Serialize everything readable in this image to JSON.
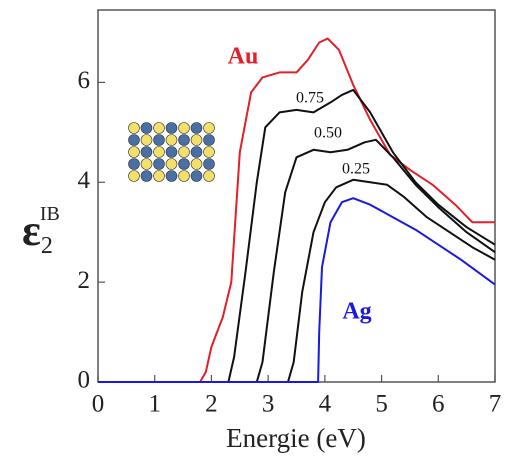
{
  "chart_data": {
    "type": "line",
    "xlabel": "Energie (eV)",
    "ylabel": {
      "symbol": "ε",
      "sub": "2",
      "sup": "IB"
    },
    "xlim": [
      0,
      7
    ],
    "ylim": [
      0,
      7.45
    ],
    "xticks": [
      0,
      1,
      2,
      3,
      4,
      5,
      6,
      7
    ],
    "yticks": [
      0,
      2,
      4,
      6
    ],
    "series": [
      {
        "name": "Au",
        "color": "#e0202a",
        "x": [
          0,
          1.8,
          1.9,
          2.0,
          2.2,
          2.35,
          2.5,
          2.7,
          2.9,
          3.2,
          3.5,
          3.7,
          3.9,
          4.05,
          4.25,
          4.5,
          4.8,
          5.15,
          5.5,
          5.9,
          6.3,
          6.6,
          7.0
        ],
        "values": [
          0,
          0,
          0.2,
          0.7,
          1.3,
          2.0,
          4.6,
          5.8,
          6.1,
          6.2,
          6.2,
          6.45,
          6.8,
          6.88,
          6.65,
          5.95,
          5.25,
          4.55,
          4.25,
          3.95,
          3.55,
          3.2,
          3.2
        ]
      },
      {
        "name": "0.75",
        "color": "#111111",
        "x": [
          0,
          2.3,
          2.4,
          2.6,
          2.8,
          2.95,
          3.2,
          3.5,
          3.8,
          4.1,
          4.3,
          4.5,
          4.8,
          5.2,
          5.6,
          6.0,
          6.5,
          7.0
        ],
        "values": [
          0,
          0,
          0.5,
          2.2,
          4.0,
          5.1,
          5.4,
          5.45,
          5.4,
          5.6,
          5.75,
          5.85,
          5.4,
          4.6,
          4.0,
          3.55,
          3.1,
          2.75
        ]
      },
      {
        "name": "0.50",
        "color": "#111111",
        "x": [
          0,
          2.8,
          2.9,
          3.1,
          3.3,
          3.5,
          3.8,
          4.1,
          4.4,
          4.7,
          4.9,
          5.2,
          5.6,
          6.0,
          6.5,
          7.0
        ],
        "values": [
          0,
          0,
          0.4,
          2.2,
          3.8,
          4.5,
          4.65,
          4.6,
          4.65,
          4.8,
          4.85,
          4.5,
          3.95,
          3.5,
          3.0,
          2.6
        ]
      },
      {
        "name": "0.25",
        "color": "#111111",
        "x": [
          0,
          3.35,
          3.45,
          3.6,
          3.8,
          4.0,
          4.2,
          4.5,
          4.8,
          5.1,
          5.4,
          5.8,
          6.2,
          6.6,
          7.0
        ],
        "values": [
          0,
          0,
          0.4,
          1.8,
          3.0,
          3.6,
          3.9,
          4.05,
          4.0,
          3.95,
          3.7,
          3.3,
          3.0,
          2.7,
          2.45
        ]
      },
      {
        "name": "Ag",
        "color": "#1a1adf",
        "x": [
          0,
          3.88,
          3.9,
          3.95,
          4.1,
          4.3,
          4.5,
          4.8,
          5.2,
          5.6,
          6.0,
          6.4,
          7.0
        ],
        "values": [
          0,
          0,
          1.0,
          2.3,
          3.2,
          3.6,
          3.68,
          3.55,
          3.3,
          3.05,
          2.75,
          2.45,
          1.95
        ]
      }
    ]
  }
}
